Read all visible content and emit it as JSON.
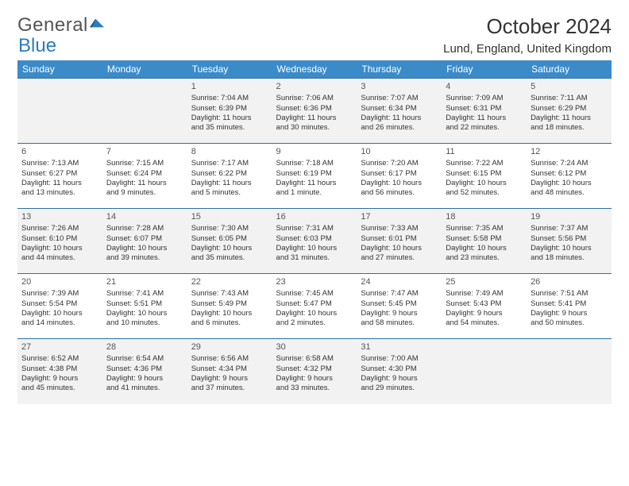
{
  "logo": {
    "text_general": "General",
    "text_blue": "Blue"
  },
  "title": "October 2024",
  "location": "Lund, England, United Kingdom",
  "colors": {
    "header_bg": "#3b8bc9",
    "header_text": "#ffffff",
    "row_border": "#2e6fa6",
    "shade_bg": "#f2f2f2",
    "body_text": "#333333"
  },
  "weekdays": [
    "Sunday",
    "Monday",
    "Tuesday",
    "Wednesday",
    "Thursday",
    "Friday",
    "Saturday"
  ],
  "weeks": [
    [
      null,
      null,
      {
        "n": "1",
        "sr": "Sunrise: 7:04 AM",
        "ss": "Sunset: 6:39 PM",
        "d1": "Daylight: 11 hours",
        "d2": "and 35 minutes."
      },
      {
        "n": "2",
        "sr": "Sunrise: 7:06 AM",
        "ss": "Sunset: 6:36 PM",
        "d1": "Daylight: 11 hours",
        "d2": "and 30 minutes."
      },
      {
        "n": "3",
        "sr": "Sunrise: 7:07 AM",
        "ss": "Sunset: 6:34 PM",
        "d1": "Daylight: 11 hours",
        "d2": "and 26 minutes."
      },
      {
        "n": "4",
        "sr": "Sunrise: 7:09 AM",
        "ss": "Sunset: 6:31 PM",
        "d1": "Daylight: 11 hours",
        "d2": "and 22 minutes."
      },
      {
        "n": "5",
        "sr": "Sunrise: 7:11 AM",
        "ss": "Sunset: 6:29 PM",
        "d1": "Daylight: 11 hours",
        "d2": "and 18 minutes."
      }
    ],
    [
      {
        "n": "6",
        "sr": "Sunrise: 7:13 AM",
        "ss": "Sunset: 6:27 PM",
        "d1": "Daylight: 11 hours",
        "d2": "and 13 minutes."
      },
      {
        "n": "7",
        "sr": "Sunrise: 7:15 AM",
        "ss": "Sunset: 6:24 PM",
        "d1": "Daylight: 11 hours",
        "d2": "and 9 minutes."
      },
      {
        "n": "8",
        "sr": "Sunrise: 7:17 AM",
        "ss": "Sunset: 6:22 PM",
        "d1": "Daylight: 11 hours",
        "d2": "and 5 minutes."
      },
      {
        "n": "9",
        "sr": "Sunrise: 7:18 AM",
        "ss": "Sunset: 6:19 PM",
        "d1": "Daylight: 11 hours",
        "d2": "and 1 minute."
      },
      {
        "n": "10",
        "sr": "Sunrise: 7:20 AM",
        "ss": "Sunset: 6:17 PM",
        "d1": "Daylight: 10 hours",
        "d2": "and 56 minutes."
      },
      {
        "n": "11",
        "sr": "Sunrise: 7:22 AM",
        "ss": "Sunset: 6:15 PM",
        "d1": "Daylight: 10 hours",
        "d2": "and 52 minutes."
      },
      {
        "n": "12",
        "sr": "Sunrise: 7:24 AM",
        "ss": "Sunset: 6:12 PM",
        "d1": "Daylight: 10 hours",
        "d2": "and 48 minutes."
      }
    ],
    [
      {
        "n": "13",
        "sr": "Sunrise: 7:26 AM",
        "ss": "Sunset: 6:10 PM",
        "d1": "Daylight: 10 hours",
        "d2": "and 44 minutes."
      },
      {
        "n": "14",
        "sr": "Sunrise: 7:28 AM",
        "ss": "Sunset: 6:07 PM",
        "d1": "Daylight: 10 hours",
        "d2": "and 39 minutes."
      },
      {
        "n": "15",
        "sr": "Sunrise: 7:30 AM",
        "ss": "Sunset: 6:05 PM",
        "d1": "Daylight: 10 hours",
        "d2": "and 35 minutes."
      },
      {
        "n": "16",
        "sr": "Sunrise: 7:31 AM",
        "ss": "Sunset: 6:03 PM",
        "d1": "Daylight: 10 hours",
        "d2": "and 31 minutes."
      },
      {
        "n": "17",
        "sr": "Sunrise: 7:33 AM",
        "ss": "Sunset: 6:01 PM",
        "d1": "Daylight: 10 hours",
        "d2": "and 27 minutes."
      },
      {
        "n": "18",
        "sr": "Sunrise: 7:35 AM",
        "ss": "Sunset: 5:58 PM",
        "d1": "Daylight: 10 hours",
        "d2": "and 23 minutes."
      },
      {
        "n": "19",
        "sr": "Sunrise: 7:37 AM",
        "ss": "Sunset: 5:56 PM",
        "d1": "Daylight: 10 hours",
        "d2": "and 18 minutes."
      }
    ],
    [
      {
        "n": "20",
        "sr": "Sunrise: 7:39 AM",
        "ss": "Sunset: 5:54 PM",
        "d1": "Daylight: 10 hours",
        "d2": "and 14 minutes."
      },
      {
        "n": "21",
        "sr": "Sunrise: 7:41 AM",
        "ss": "Sunset: 5:51 PM",
        "d1": "Daylight: 10 hours",
        "d2": "and 10 minutes."
      },
      {
        "n": "22",
        "sr": "Sunrise: 7:43 AM",
        "ss": "Sunset: 5:49 PM",
        "d1": "Daylight: 10 hours",
        "d2": "and 6 minutes."
      },
      {
        "n": "23",
        "sr": "Sunrise: 7:45 AM",
        "ss": "Sunset: 5:47 PM",
        "d1": "Daylight: 10 hours",
        "d2": "and 2 minutes."
      },
      {
        "n": "24",
        "sr": "Sunrise: 7:47 AM",
        "ss": "Sunset: 5:45 PM",
        "d1": "Daylight: 9 hours",
        "d2": "and 58 minutes."
      },
      {
        "n": "25",
        "sr": "Sunrise: 7:49 AM",
        "ss": "Sunset: 5:43 PM",
        "d1": "Daylight: 9 hours",
        "d2": "and 54 minutes."
      },
      {
        "n": "26",
        "sr": "Sunrise: 7:51 AM",
        "ss": "Sunset: 5:41 PM",
        "d1": "Daylight: 9 hours",
        "d2": "and 50 minutes."
      }
    ],
    [
      {
        "n": "27",
        "sr": "Sunrise: 6:52 AM",
        "ss": "Sunset: 4:38 PM",
        "d1": "Daylight: 9 hours",
        "d2": "and 45 minutes."
      },
      {
        "n": "28",
        "sr": "Sunrise: 6:54 AM",
        "ss": "Sunset: 4:36 PM",
        "d1": "Daylight: 9 hours",
        "d2": "and 41 minutes."
      },
      {
        "n": "29",
        "sr": "Sunrise: 6:56 AM",
        "ss": "Sunset: 4:34 PM",
        "d1": "Daylight: 9 hours",
        "d2": "and 37 minutes."
      },
      {
        "n": "30",
        "sr": "Sunrise: 6:58 AM",
        "ss": "Sunset: 4:32 PM",
        "d1": "Daylight: 9 hours",
        "d2": "and 33 minutes."
      },
      {
        "n": "31",
        "sr": "Sunrise: 7:00 AM",
        "ss": "Sunset: 4:30 PM",
        "d1": "Daylight: 9 hours",
        "d2": "and 29 minutes."
      },
      null,
      null
    ]
  ],
  "shaded_weeks": [
    0,
    2,
    4
  ]
}
